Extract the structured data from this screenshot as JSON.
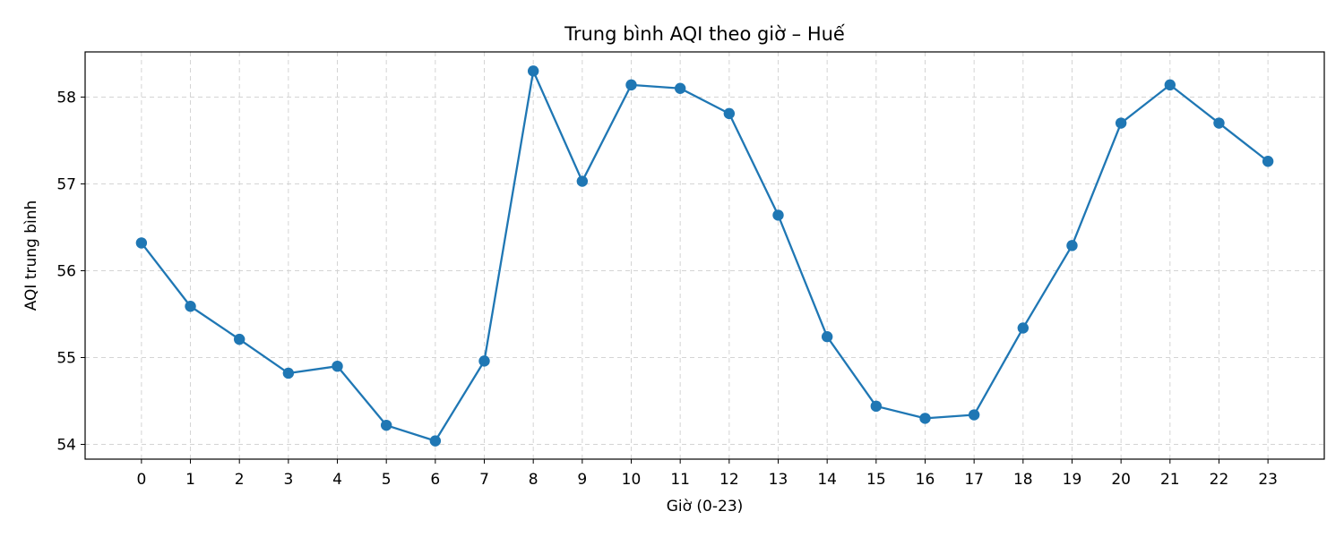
{
  "chart_data": {
    "type": "line",
    "title": "Trung bình AQI theo giờ – Huế",
    "xlabel": "Giờ (0-23)",
    "ylabel": "AQI trung bình",
    "x": [
      0,
      1,
      2,
      3,
      4,
      5,
      6,
      7,
      8,
      9,
      10,
      11,
      12,
      13,
      14,
      15,
      16,
      17,
      18,
      19,
      20,
      21,
      22,
      23
    ],
    "x_tick_labels": [
      "0",
      "1",
      "2",
      "3",
      "4",
      "5",
      "6",
      "7",
      "8",
      "9",
      "10",
      "11",
      "12",
      "13",
      "14",
      "15",
      "16",
      "17",
      "18",
      "19",
      "20",
      "21",
      "22",
      "23"
    ],
    "y_ticks": [
      54,
      55,
      56,
      57,
      58
    ],
    "y_tick_labels": [
      "54",
      "55",
      "56",
      "57",
      "58"
    ],
    "series": [
      {
        "values": [
          56.32,
          55.59,
          55.21,
          54.82,
          54.9,
          54.22,
          54.04,
          54.96,
          58.3,
          57.03,
          58.14,
          58.1,
          57.81,
          56.64,
          55.24,
          54.44,
          54.3,
          54.34,
          55.34,
          56.29,
          57.7,
          58.14,
          57.7,
          57.26
        ],
        "color": "#1f77b4",
        "marker": "circle"
      }
    ],
    "xlim": [
      -1.15,
      24.15
    ],
    "ylim": [
      53.83,
      58.52
    ],
    "grid": true,
    "legend": false
  }
}
